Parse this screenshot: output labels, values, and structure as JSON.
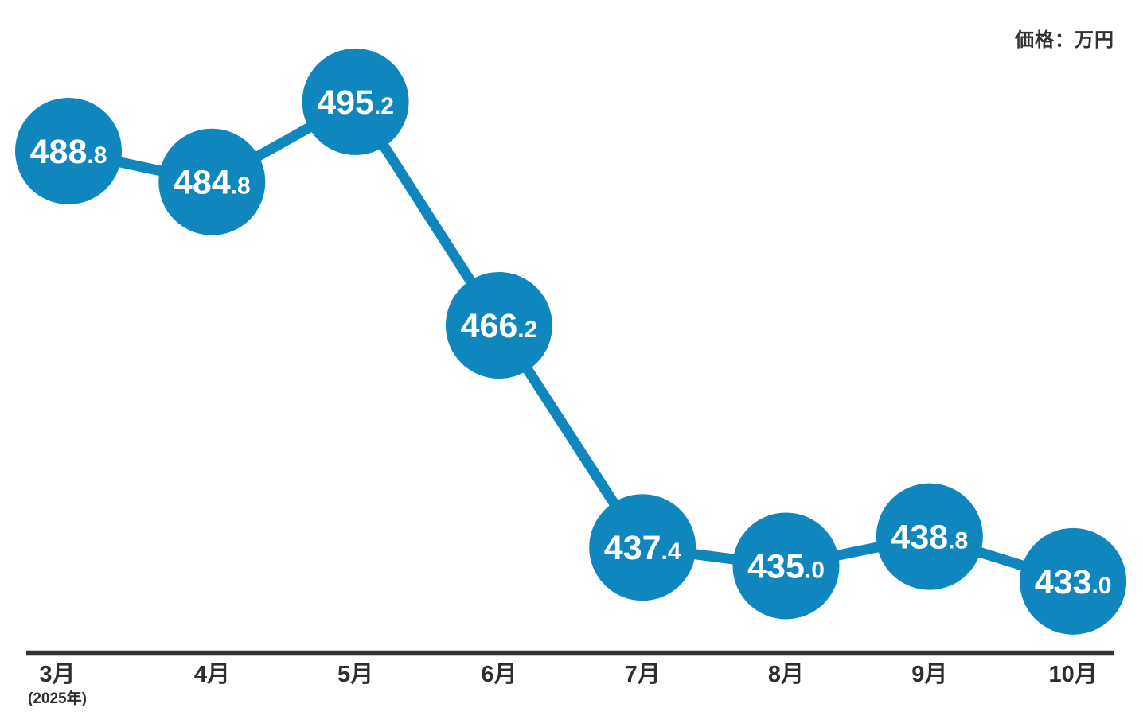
{
  "chart_data": {
    "type": "line",
    "title": "",
    "unit_label": "価格：万円",
    "categories": [
      "3月",
      "4月",
      "5月",
      "6月",
      "7月",
      "8月",
      "9月",
      "10月"
    ],
    "x_axis_note": "(2025年)",
    "values": [
      488.8,
      484.8,
      495.2,
      466.2,
      437.4,
      435.0,
      438.8,
      433.0
    ],
    "point_labels": [
      "488.8",
      "484.8",
      "495.2",
      "466.2",
      "437.4",
      "435.0",
      "438.8",
      "433.0"
    ],
    "ylim": [
      427,
      502
    ],
    "grid": false,
    "legend_position": "none",
    "colors": {
      "point_fill": "#0f86be",
      "line": "#0f86be",
      "value_text": "#ffffff",
      "axis_line": "#333333",
      "axis_text": "#2e2e2e"
    }
  }
}
